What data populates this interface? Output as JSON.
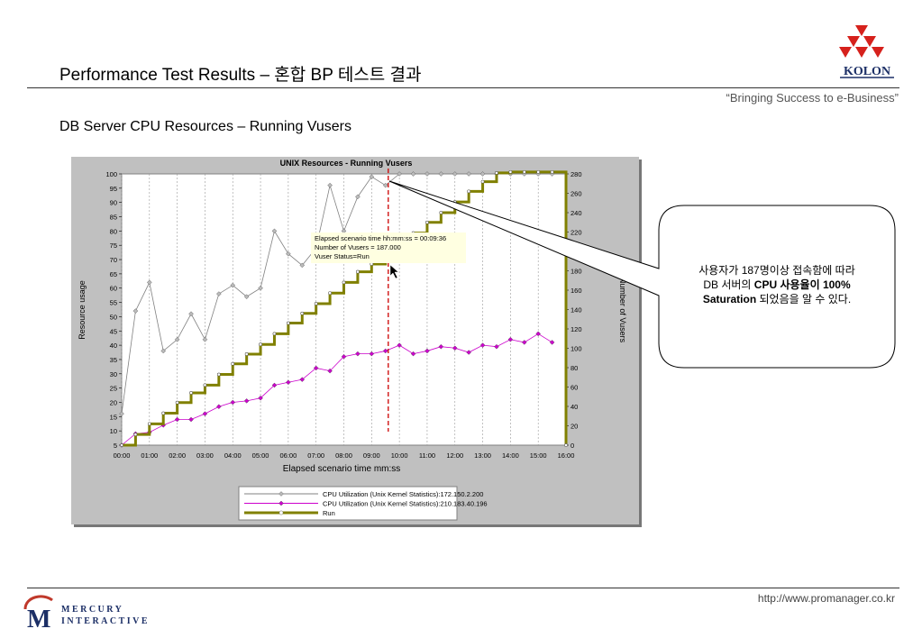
{
  "header": {
    "title": "Performance Test Results –  혼합 BP 테스트 결과",
    "tagline": "“Bringing Success to e-Business”",
    "brand_logo": "KOLON",
    "brand_color": "#d6211c"
  },
  "section": {
    "subtitle": "DB Server CPU Resources – Running Vusers"
  },
  "callout": {
    "line1": "사용자가 187명이상 접속함에 따라",
    "line2_prefix": "DB 서버의 ",
    "line2_bold": "CPU 사용율이 100%",
    "line3_bold": "Saturation",
    "line3_suffix": " 되었음을 알 수 있다."
  },
  "tooltip": {
    "line1": "Elapsed scenario time hh:mm:ss = 00:09:36",
    "line2": "Number of Vusers = 187.000",
    "line3": "Vuser Status=Run"
  },
  "footer": {
    "url": "http://www.promanager.co.kr",
    "logo_line1": "MERCURY",
    "logo_line2": "INTERACTIVE"
  },
  "chart_data": {
    "type": "line",
    "title": "UNIX Resources - Running Vusers",
    "xlabel": "Elapsed scenario time mm:ss",
    "ylabel": "Resource usage",
    "y2label": "Number of Vusers",
    "ylim": [
      5,
      100
    ],
    "y2lim": [
      0,
      280
    ],
    "x_ticks": [
      "00:00",
      "01:00",
      "02:00",
      "03:00",
      "04:00",
      "05:00",
      "06:00",
      "07:00",
      "08:00",
      "09:00",
      "10:00",
      "11:00",
      "12:00",
      "13:00",
      "14:00",
      "15:00",
      "16:00"
    ],
    "y_ticks": [
      5,
      10,
      15,
      20,
      25,
      30,
      35,
      40,
      45,
      50,
      55,
      60,
      65,
      70,
      75,
      80,
      85,
      90,
      95,
      100
    ],
    "y2_ticks": [
      0,
      20,
      40,
      60,
      80,
      100,
      120,
      140,
      160,
      180,
      200,
      220,
      240,
      260,
      280
    ],
    "marker_time": 9.6,
    "grid": true,
    "legend_position": "bottom",
    "series": [
      {
        "name": "CPU Utilization (Unix Kernel Statistics):172.150.2.200",
        "axis": "left",
        "color": "#808080",
        "x": [
          0,
          0.5,
          1,
          1.5,
          2,
          2.5,
          3,
          3.5,
          4,
          4.5,
          5,
          5.5,
          6,
          6.5,
          7,
          7.5,
          8,
          8.5,
          9,
          9.5,
          10,
          10.5,
          11,
          11.5,
          12,
          12.5,
          13,
          13.5,
          14,
          14.5,
          15,
          15.5
        ],
        "y": [
          16,
          52,
          62,
          38,
          42,
          51,
          42,
          58,
          61,
          57,
          60,
          80,
          72,
          68,
          74,
          96,
          80,
          92,
          99,
          96,
          100,
          100,
          100,
          100,
          100,
          100,
          100,
          100,
          100,
          100,
          100,
          100
        ]
      },
      {
        "name": "CPU Utilization (Unix Kernel Statistics):210.183.40.196",
        "axis": "left",
        "color": "#cc00cc",
        "x": [
          0,
          0.5,
          1,
          1.5,
          2,
          2.5,
          3,
          3.5,
          4,
          4.5,
          5,
          5.5,
          6,
          6.5,
          7,
          7.5,
          8,
          8.5,
          9,
          9.5,
          10,
          10.5,
          11,
          11.5,
          12,
          12.5,
          13,
          13.5,
          14,
          14.5,
          15,
          15.5
        ],
        "y": [
          5,
          9,
          9.5,
          12,
          14,
          14,
          16,
          18.5,
          20,
          20.5,
          21.5,
          26,
          27,
          28,
          32,
          31,
          36,
          37,
          37,
          38,
          40,
          37,
          38,
          39.5,
          39,
          37.5,
          40,
          39.5,
          42,
          41,
          44,
          41
        ]
      },
      {
        "name": "Run",
        "axis": "right",
        "color": "#808000",
        "x": [
          0,
          0.5,
          1,
          1.5,
          2,
          2.5,
          3,
          3.5,
          4,
          4.5,
          5,
          5.5,
          6,
          6.5,
          7,
          7.5,
          8,
          8.5,
          9,
          9.5,
          10,
          10.5,
          11,
          11.5,
          12,
          12.5,
          13,
          13.5,
          14,
          14.5,
          15,
          15.5,
          16
        ],
        "y": [
          0,
          11,
          22,
          33,
          44,
          54,
          62,
          73,
          84,
          94,
          104,
          115,
          126,
          136,
          146,
          157,
          168,
          179,
          187,
          198,
          208,
          219,
          230,
          240,
          251,
          262,
          272,
          281,
          282,
          282,
          282,
          282,
          0
        ]
      }
    ]
  }
}
